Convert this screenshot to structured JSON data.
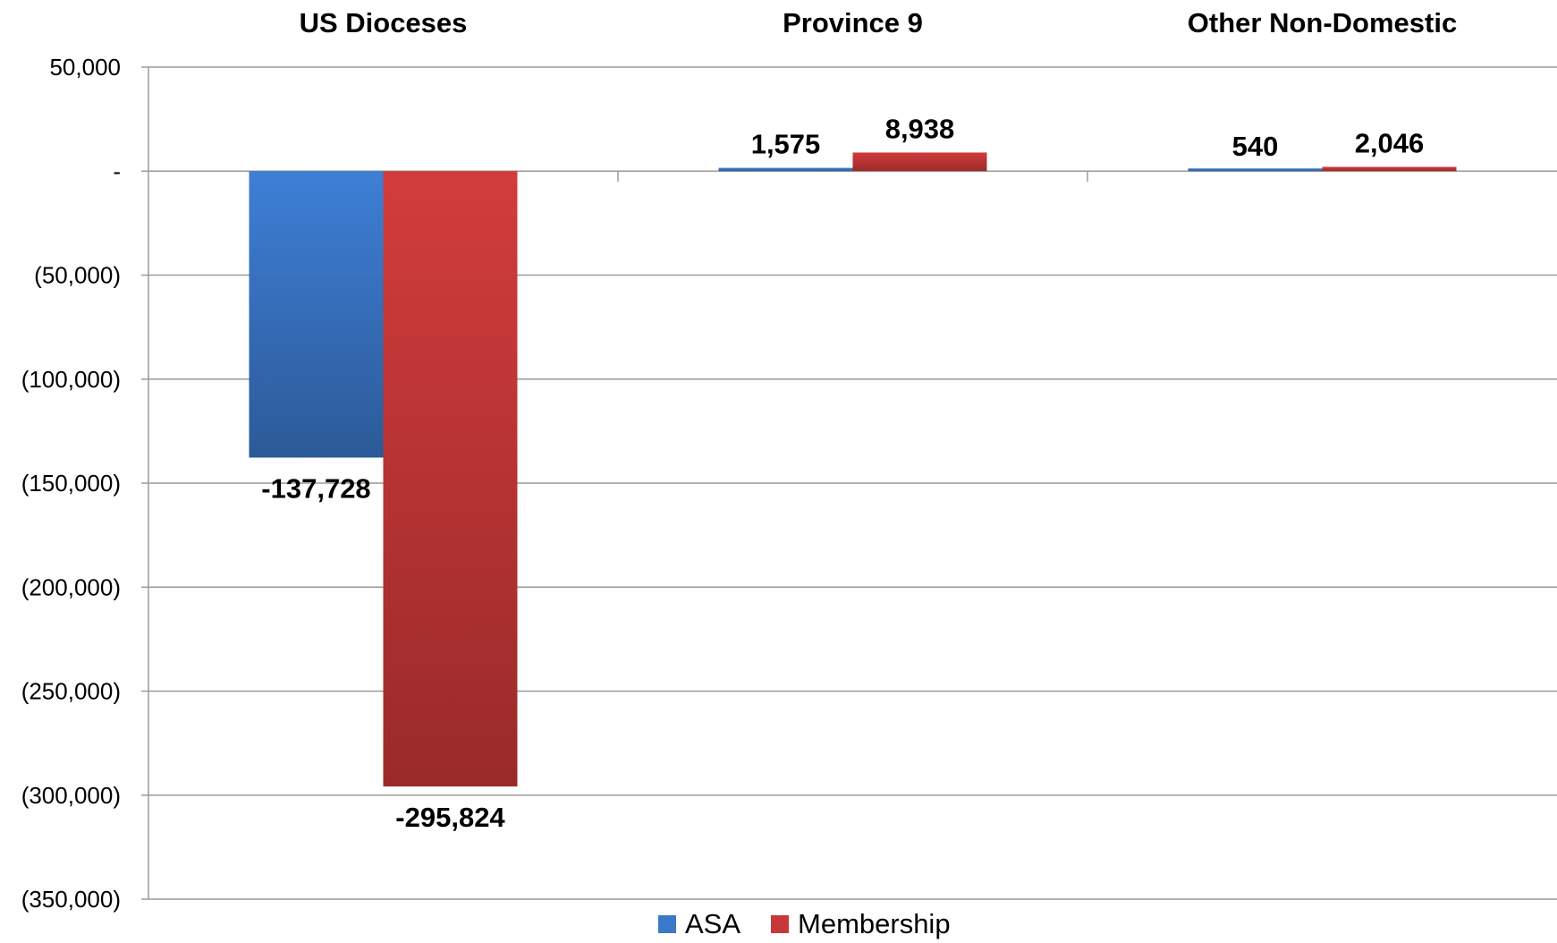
{
  "chart_data": {
    "type": "bar",
    "categories": [
      "US Dioceses",
      "Province 9",
      "Other Non-Domestic"
    ],
    "category_label_position": "top",
    "series": [
      {
        "name": "ASA",
        "values": [
          -137728,
          1575,
          540
        ],
        "labels": [
          "-137,728",
          "1,575",
          "540"
        ],
        "color": "#3a78c9"
      },
      {
        "name": "Membership",
        "values": [
          -295824,
          8938,
          2046
        ],
        "labels": [
          "-295,824",
          "8,938",
          "2,046"
        ],
        "color": "#c8383a"
      }
    ],
    "ylim": [
      -350000,
      50000
    ],
    "yticks": [
      50000,
      0,
      -50000,
      -100000,
      -150000,
      -200000,
      -250000,
      -300000,
      -350000
    ],
    "ytick_labels": [
      "50,000",
      "-",
      "(50,000)",
      "(100,000)",
      "(150,000)",
      "(200,000)",
      "(250,000)",
      "(300,000)",
      "(350,000)"
    ],
    "grid": true,
    "legend": "bottom-center"
  }
}
